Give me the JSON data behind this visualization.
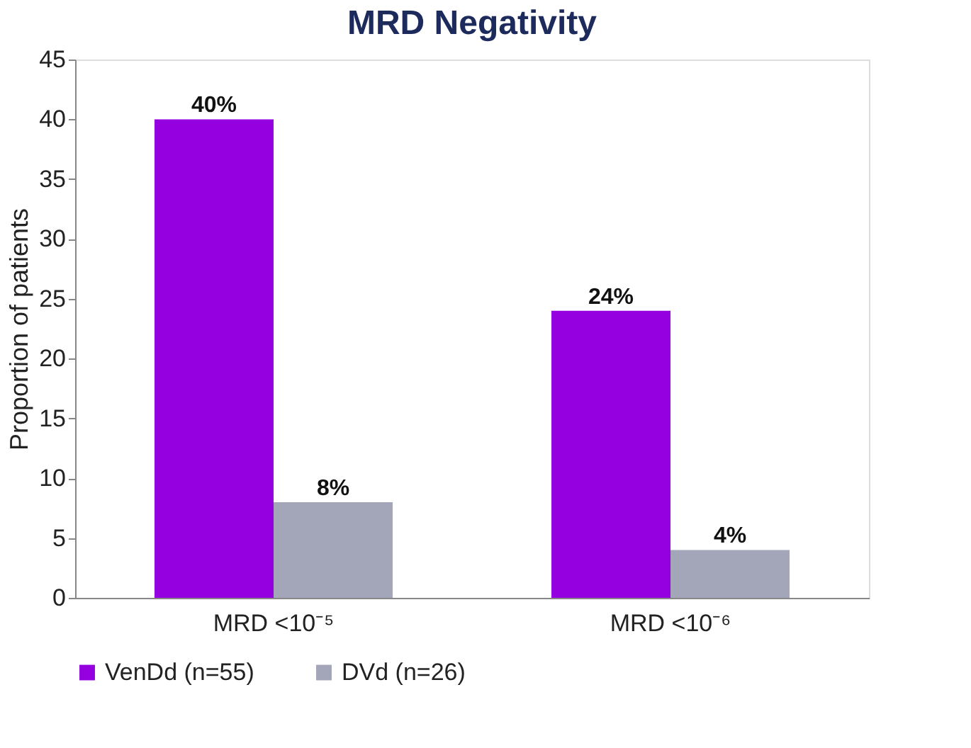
{
  "chart_data": {
    "type": "bar",
    "title": "MRD Negativity",
    "ylabel": "Proportion of patients",
    "categories": [
      "MRD <10⁻⁵",
      "MRD <10⁻⁶"
    ],
    "series": [
      {
        "name": "VenDd (n=55)",
        "color": "#9400e0",
        "values": [
          40,
          24
        ],
        "value_labels": [
          "40%",
          "24%"
        ]
      },
      {
        "name": "DVd (n=26)",
        "color": "#a2a6b8",
        "values": [
          8,
          4
        ],
        "value_labels": [
          "8%",
          "4%"
        ]
      }
    ],
    "ylim": [
      0,
      45
    ],
    "yticks": [
      0,
      5,
      10,
      15,
      20,
      25,
      30,
      35,
      40,
      45
    ],
    "grid": false,
    "legend": "bottom"
  }
}
